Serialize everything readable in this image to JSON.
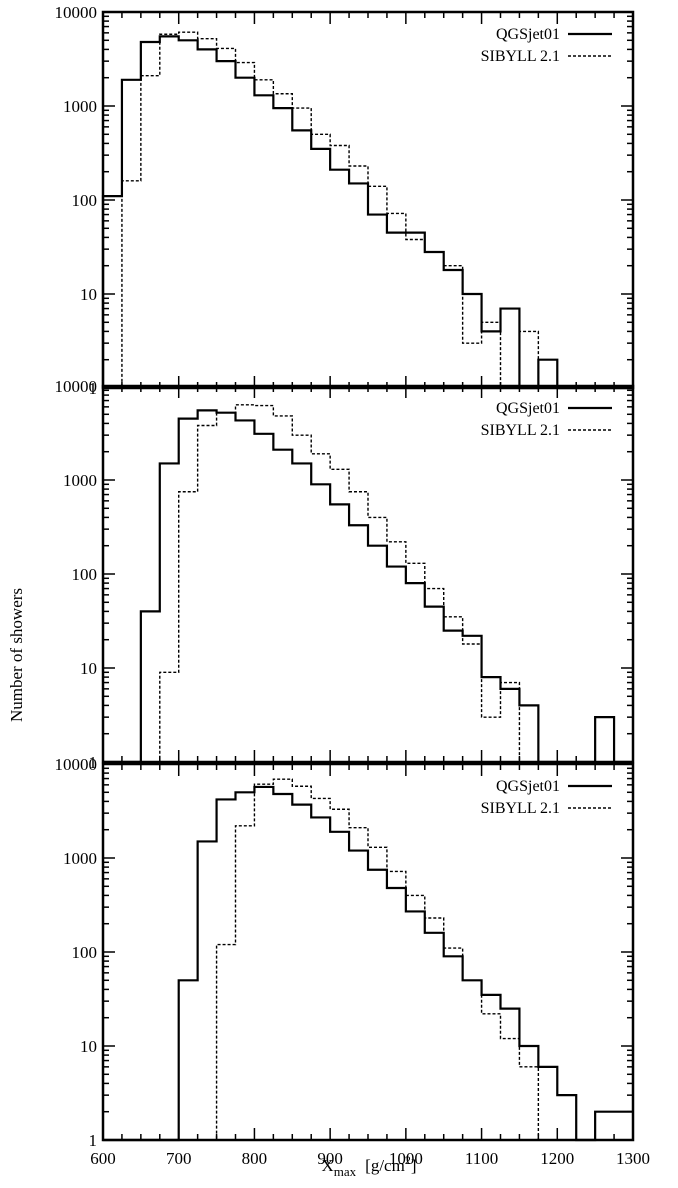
{
  "chart_data": {
    "type": "line",
    "panels": 3,
    "xlabel_main": "X",
    "xlabel_sub": "max",
    "xlabel_units": "[g/cm",
    "xlabel_units_sup": "2",
    "xlabel_units_end": "]",
    "ylabel": "Number of showers",
    "xlim": [
      600,
      1300
    ],
    "ylim": [
      1,
      10000
    ],
    "yscale": "log",
    "x_ticks": [
      "600",
      "700",
      "800",
      "900",
      "1000",
      "1100",
      "1200",
      "1300"
    ],
    "y_ticks": [
      "1",
      "10",
      "100",
      "1000",
      "10000"
    ],
    "step_style": "histogram",
    "bin_width": 25,
    "bin_edges": [
      600,
      625,
      650,
      675,
      700,
      725,
      750,
      775,
      800,
      825,
      850,
      875,
      900,
      925,
      950,
      975,
      1000,
      1025,
      1050,
      1075,
      1100,
      1125,
      1150,
      1175,
      1200,
      1225,
      1250,
      1275,
      1300
    ],
    "legend_position": "top-right",
    "series_styles": [
      {
        "name": "QGSjet01",
        "dash": "solid",
        "width": 2.2
      },
      {
        "name": "SIBYLL 2.1",
        "dash": "dotted",
        "width": 1.4
      }
    ],
    "charts": [
      {
        "series": [
          {
            "name": "QGSjet01",
            "values": [
              110,
              1900,
              4800,
              5500,
              5000,
              4000,
              3000,
              2000,
              1300,
              950,
              550,
              350,
              210,
              150,
              70,
              45,
              45,
              28,
              18,
              10,
              4,
              7,
              1,
              2,
              1,
              1,
              1,
              1
            ]
          },
          {
            "name": "SIBYLL 2.1",
            "values": [
              1,
              160,
              2100,
              5800,
              6100,
              5200,
              4100,
              2900,
              1900,
              1350,
              950,
              500,
              380,
              230,
              140,
              72,
              38,
              28,
              20,
              3,
              5,
              1,
              4,
              1,
              1,
              1,
              1,
              1
            ]
          }
        ]
      },
      {
        "series": [
          {
            "name": "QGSjet01",
            "values": [
              1,
              1,
              40,
              1500,
              4500,
              5500,
              5200,
              4300,
              3100,
              2100,
              1500,
              900,
              550,
              330,
              200,
              120,
              80,
              45,
              25,
              22,
              8,
              6,
              4,
              1,
              1,
              1,
              3,
              1
            ]
          },
          {
            "name": "SIBYLL 2.1",
            "values": [
              1,
              1,
              1,
              9,
              750,
              3800,
              5200,
              6300,
              6200,
              4800,
              3000,
              1900,
              1300,
              750,
              400,
              220,
              130,
              70,
              35,
              18,
              3,
              7,
              1,
              1,
              1,
              1,
              1,
              1
            ]
          }
        ]
      },
      {
        "series": [
          {
            "name": "QGSjet01",
            "values": [
              1,
              1,
              1,
              1,
              50,
              1500,
              4200,
              5000,
              5700,
              4800,
              3700,
              2700,
              1900,
              1200,
              750,
              480,
              270,
              160,
              90,
              50,
              35,
              25,
              10,
              6,
              3,
              1,
              2,
              2
            ]
          },
          {
            "name": "SIBYLL 2.1",
            "values": [
              1,
              1,
              1,
              1,
              1,
              1,
              120,
              2200,
              6100,
              6900,
              5800,
              4300,
              3300,
              2100,
              1300,
              720,
              400,
              230,
              110,
              50,
              22,
              12,
              6,
              1,
              1,
              1,
              1,
              1
            ]
          }
        ]
      }
    ]
  }
}
